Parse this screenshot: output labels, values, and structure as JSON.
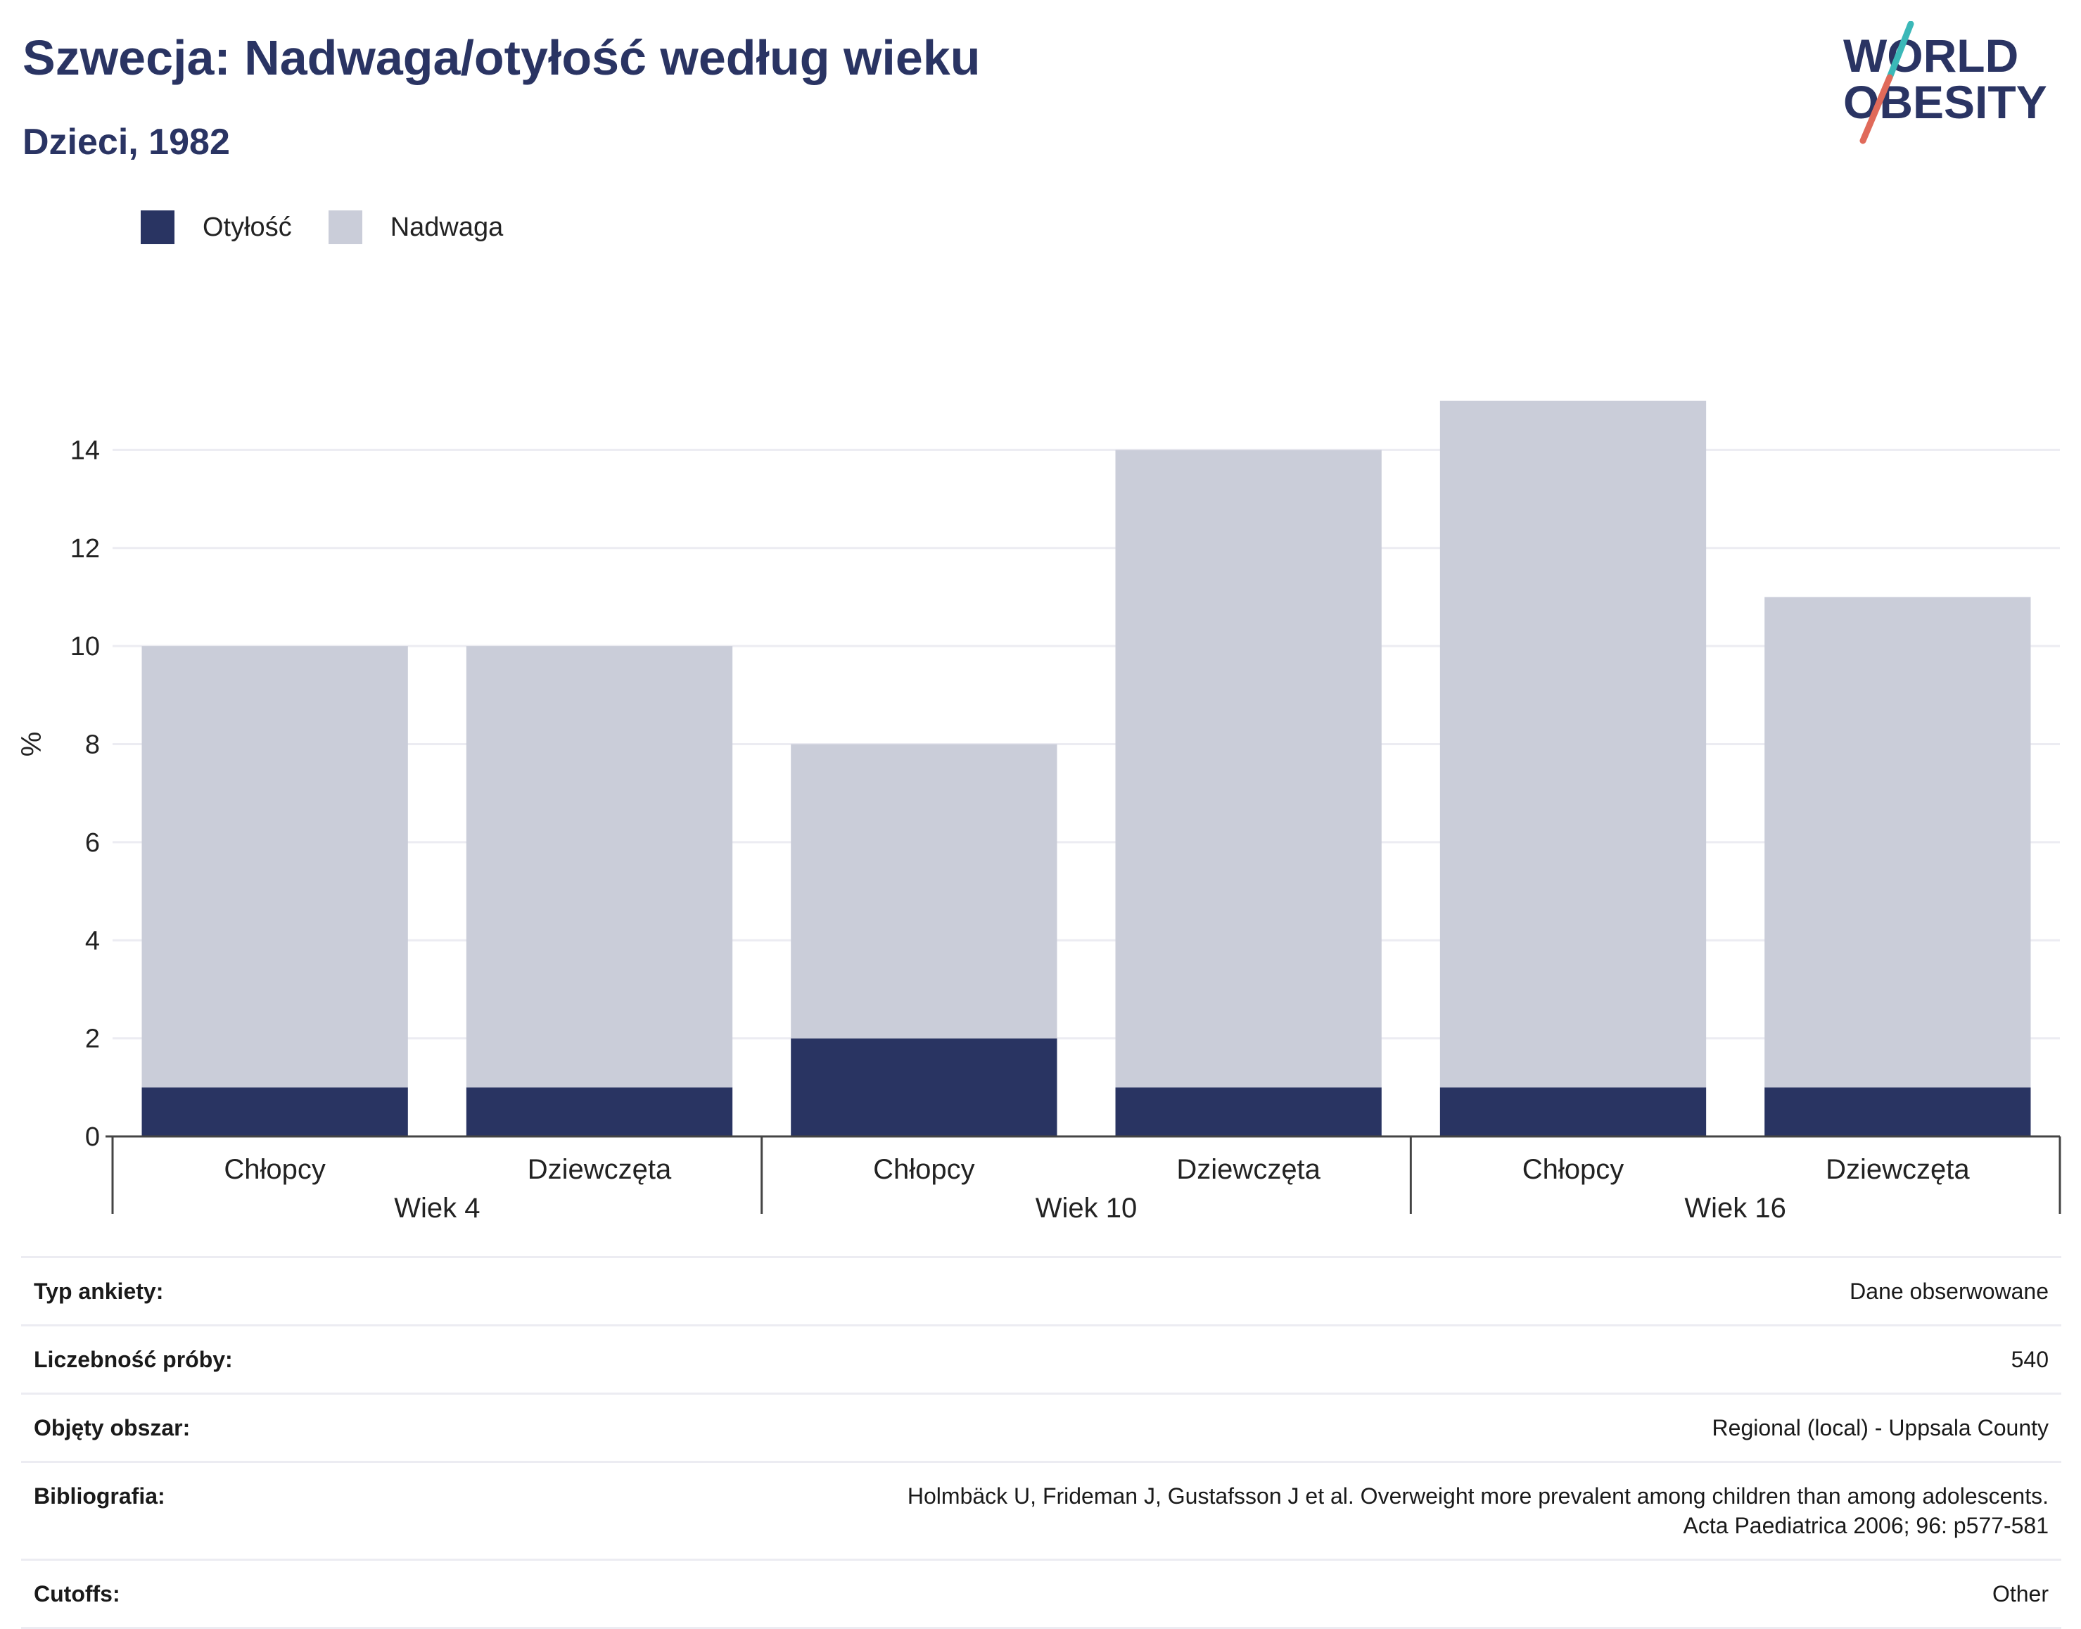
{
  "header": {
    "title": "Szwecja: Nadwaga/otyłość według wieku",
    "subtitle": "Dzieci, 1982"
  },
  "logo": {
    "line1": "WORLD",
    "line2": "OBESITY",
    "colors": {
      "text": "#2a3463",
      "accent_teal": "#3bb8b8",
      "accent_coral": "#e06a5a"
    }
  },
  "legend": [
    {
      "label": "Otyłość",
      "color": "#293462"
    },
    {
      "label": "Nadwaga",
      "color": "#cacdd9"
    }
  ],
  "chart_data": {
    "type": "bar",
    "stacked": true,
    "ylabel": "%",
    "xlabel": "",
    "ylim": [
      0,
      16
    ],
    "yticks": [
      0,
      2,
      4,
      6,
      8,
      10,
      12,
      14
    ],
    "grid": true,
    "legend_position": "top-left",
    "groups": [
      "Wiek 4",
      "Wiek 10",
      "Wiek 16"
    ],
    "categories": [
      "Chłopcy",
      "Dziewczęta",
      "Chłopcy",
      "Dziewczęta",
      "Chłopcy",
      "Dziewczęta"
    ],
    "group_of_category": [
      0,
      0,
      1,
      1,
      2,
      2
    ],
    "series": [
      {
        "name": "Otyłość",
        "color": "#293462",
        "values": [
          1,
          1,
          2,
          1,
          1,
          1
        ]
      },
      {
        "name": "Nadwaga",
        "color": "#cacdd9",
        "values": [
          9,
          9,
          6,
          13,
          14,
          10
        ]
      }
    ]
  },
  "info": [
    {
      "key": "Typ ankiety:",
      "value": "Dane obserwowane"
    },
    {
      "key": "Liczebność próby:",
      "value": "540"
    },
    {
      "key": "Objęty obszar:",
      "value": "Regional (local) - Uppsala County"
    },
    {
      "key": "Bibliografia:",
      "value": "Holmbäck U, Frideman J, Gustafsson J et al. Overweight more prevalent among children than among adolescents. Acta Paediatrica 2006; 96: p577-581"
    },
    {
      "key": "Cutoffs:",
      "value": "Other"
    }
  ]
}
